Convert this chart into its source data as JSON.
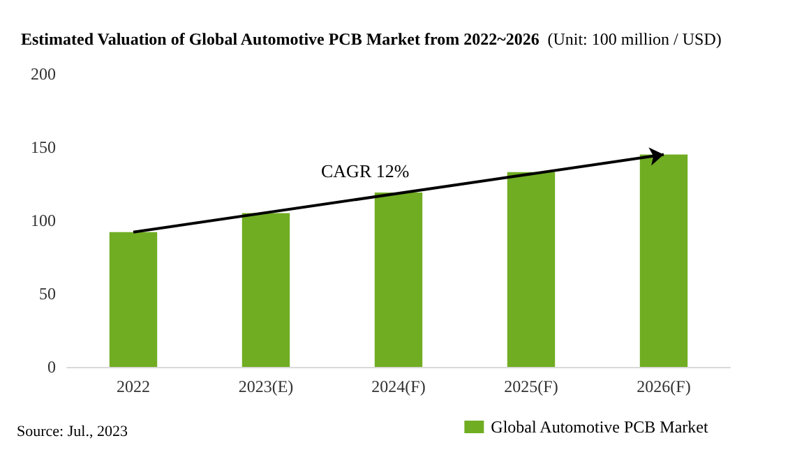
{
  "chart_data": {
    "type": "bar",
    "title": "Estimated Valuation of Global Automotive PCB Market from 2022~2026",
    "subtitle": "(Unit: 100 million / USD)",
    "categories": [
      "2022",
      "2023(E)",
      "2024(F)",
      "2025(F)",
      "2026(F)"
    ],
    "series": [
      {
        "name": "Global Automotive PCB Market",
        "color": "#70ad22",
        "values": [
          92,
          105,
          119,
          133,
          145
        ]
      }
    ],
    "ylim": [
      0,
      200
    ],
    "yticks": [
      0,
      50,
      100,
      150,
      200
    ],
    "grid": false,
    "legend": "bottom right",
    "annotations": [
      "CAGR 12%",
      "Source: Jul., 2023"
    ]
  }
}
